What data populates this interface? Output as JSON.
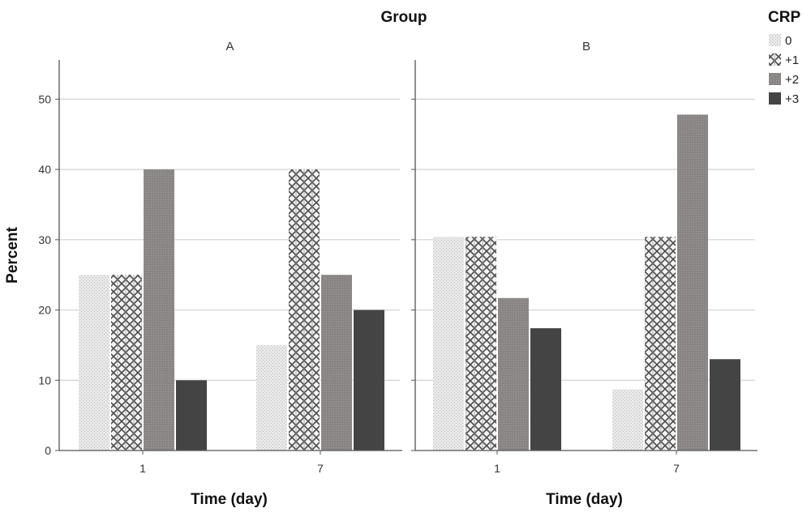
{
  "chart_data": {
    "type": "bar",
    "title": "Group",
    "ylabel": "Percent",
    "xlabel": "Time (day)",
    "ylim": [
      0,
      55
    ],
    "yticks": [
      0,
      10,
      20,
      30,
      40,
      50
    ],
    "grid": true,
    "legend": {
      "title": "CRP",
      "placement": "top-right",
      "entries": [
        "0",
        "+1",
        "+2",
        "+3"
      ]
    },
    "panels": [
      {
        "label": "A",
        "categories": [
          "1",
          "7"
        ],
        "series": [
          {
            "name": "0",
            "values": [
              25,
              15
            ]
          },
          {
            "name": "+1",
            "values": [
              25,
              40
            ]
          },
          {
            "name": "+2",
            "values": [
              40,
              25
            ]
          },
          {
            "name": "+3",
            "values": [
              10,
              20
            ]
          }
        ]
      },
      {
        "label": "B",
        "categories": [
          "1",
          "7"
        ],
        "series": [
          {
            "name": "0",
            "values": [
              30.4,
              8.7
            ]
          },
          {
            "name": "+1",
            "values": [
              30.4,
              30.4
            ]
          },
          {
            "name": "+2",
            "values": [
              21.7,
              47.8
            ]
          },
          {
            "name": "+3",
            "values": [
              17.4,
              13
            ]
          }
        ]
      }
    ],
    "series_colors": [
      "#e4e4e4",
      "#bdbdbd",
      "#8a8585",
      "#444444"
    ]
  }
}
